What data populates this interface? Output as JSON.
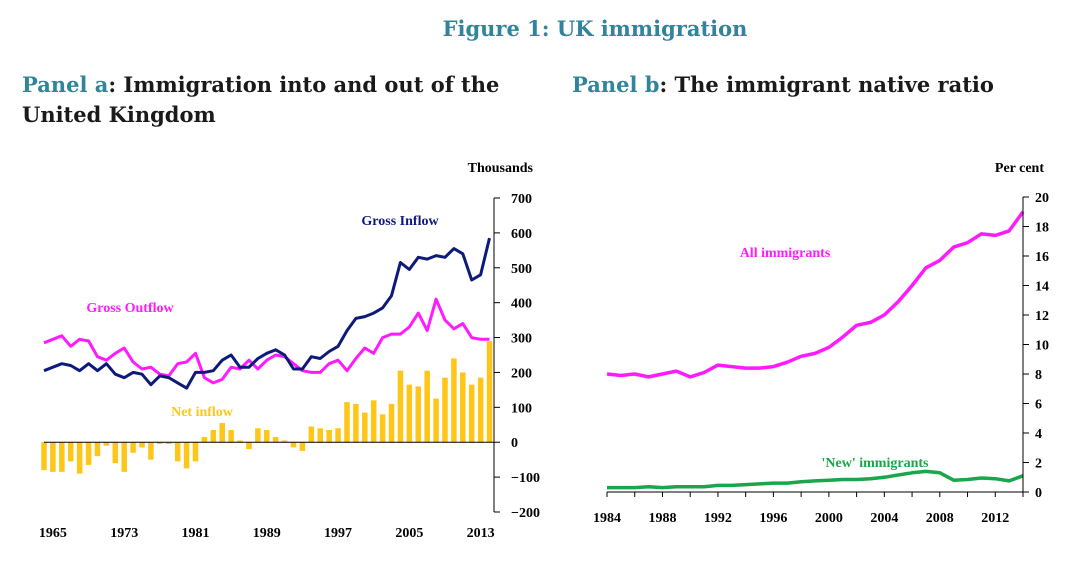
{
  "figure_title": "Figure 1: UK immigration",
  "panel_a": {
    "label": "Panel a",
    "title": ":  Immigration into and out of the United Kingdom",
    "unit_label": "Thousands"
  },
  "panel_b": {
    "label": "Panel b",
    "title": ":  The immigrant native ratio",
    "unit_label": "Per cent"
  },
  "colors": {
    "inflow": "#0d1a7a",
    "outflow": "#ff1aff",
    "net": "#ffc61a",
    "all_immigrants": "#ff1aff",
    "new_immigrants": "#1aa64a",
    "axis": "#000000"
  },
  "chart_data": [
    {
      "type": "bar+line",
      "title": "Immigration into and out of the United Kingdom",
      "ylabel": "Thousands",
      "ylim": [
        -200,
        700
      ],
      "yticks": [
        -200,
        -100,
        0,
        100,
        200,
        300,
        400,
        500,
        600,
        700
      ],
      "xlim": [
        1964,
        2014.5
      ],
      "xticks": [
        1965,
        1973,
        1981,
        1989,
        1997,
        2005,
        2013
      ],
      "years": [
        1964,
        1965,
        1966,
        1967,
        1968,
        1969,
        1970,
        1971,
        1972,
        1973,
        1974,
        1975,
        1976,
        1977,
        1978,
        1979,
        1980,
        1981,
        1982,
        1983,
        1984,
        1985,
        1986,
        1987,
        1988,
        1989,
        1990,
        1991,
        1992,
        1993,
        1994,
        1995,
        1996,
        1997,
        1998,
        1999,
        2000,
        2001,
        2002,
        2003,
        2004,
        2005,
        2006,
        2007,
        2008,
        2009,
        2010,
        2011,
        2012,
        2013,
        2014
      ],
      "series": [
        {
          "name": "Gross Inflow",
          "kind": "line",
          "color": "#0d1a7a",
          "values": [
            205,
            215,
            225,
            220,
            205,
            225,
            205,
            225,
            195,
            185,
            200,
            195,
            165,
            190,
            185,
            170,
            155,
            200,
            200,
            205,
            235,
            250,
            215,
            215,
            240,
            255,
            265,
            250,
            210,
            210,
            245,
            240,
            260,
            275,
            320,
            355,
            360,
            370,
            385,
            420,
            515,
            495,
            530,
            525,
            535,
            530,
            555,
            540,
            465,
            480,
            585
          ]
        },
        {
          "name": "Gross Outflow",
          "kind": "line",
          "color": "#ff1aff",
          "values": [
            285,
            295,
            305,
            275,
            295,
            290,
            245,
            235,
            255,
            270,
            230,
            210,
            215,
            195,
            190,
            225,
            230,
            255,
            185,
            170,
            180,
            215,
            210,
            235,
            210,
            235,
            250,
            245,
            225,
            205,
            200,
            200,
            225,
            235,
            205,
            240,
            270,
            255,
            300,
            310,
            310,
            330,
            370,
            320,
            410,
            350,
            325,
            340,
            300,
            295,
            295
          ]
        },
        {
          "name": "Net inflow",
          "kind": "bar",
          "color": "#ffc61a",
          "values": [
            -80,
            -85,
            -85,
            -55,
            -90,
            -65,
            -40,
            -10,
            -60,
            -85,
            -30,
            -15,
            -50,
            -5,
            -5,
            -55,
            -75,
            -55,
            15,
            35,
            55,
            35,
            5,
            -20,
            40,
            35,
            15,
            5,
            -15,
            -25,
            45,
            40,
            35,
            40,
            115,
            110,
            85,
            120,
            80,
            110,
            205,
            165,
            160,
            205,
            125,
            185,
            240,
            200,
            165,
            185,
            290
          ]
        }
      ],
      "annotations": [
        "Gross Inflow",
        "Gross Outflow",
        "Net inflow"
      ]
    },
    {
      "type": "line",
      "title": "The immigrant native ratio",
      "ylabel": "Per cent",
      "ylim": [
        0,
        20
      ],
      "yticks": [
        0,
        2,
        4,
        6,
        8,
        10,
        12,
        14,
        16,
        18,
        20
      ],
      "xlim": [
        1984,
        2014
      ],
      "xticks": [
        1984,
        1988,
        1992,
        1996,
        2000,
        2004,
        2008,
        2012
      ],
      "years": [
        1984,
        1985,
        1986,
        1987,
        1988,
        1989,
        1990,
        1991,
        1992,
        1993,
        1994,
        1995,
        1996,
        1997,
        1998,
        1999,
        2000,
        2001,
        2002,
        2003,
        2004,
        2005,
        2006,
        2007,
        2008,
        2009,
        2010,
        2011,
        2012,
        2013,
        2014
      ],
      "series": [
        {
          "name": "All immigrants",
          "color": "#ff1aff",
          "values": [
            8.0,
            7.9,
            8.0,
            7.8,
            8.0,
            8.2,
            7.8,
            8.1,
            8.6,
            8.5,
            8.4,
            8.4,
            8.5,
            8.8,
            9.2,
            9.4,
            9.8,
            10.5,
            11.3,
            11.5,
            12.0,
            12.9,
            14.0,
            15.2,
            15.7,
            16.6,
            16.9,
            17.5,
            17.4,
            17.7,
            19.0
          ]
        },
        {
          "name": "'New' immigrants",
          "color": "#1aa64a",
          "values": [
            0.3,
            0.3,
            0.3,
            0.35,
            0.3,
            0.35,
            0.35,
            0.35,
            0.45,
            0.45,
            0.5,
            0.55,
            0.6,
            0.6,
            0.7,
            0.75,
            0.8,
            0.85,
            0.85,
            0.9,
            1.0,
            1.15,
            1.3,
            1.4,
            1.3,
            0.8,
            0.85,
            0.95,
            0.9,
            0.75,
            1.1
          ]
        }
      ],
      "annotations": [
        "All immigrants",
        "'New' immigrants"
      ]
    }
  ]
}
